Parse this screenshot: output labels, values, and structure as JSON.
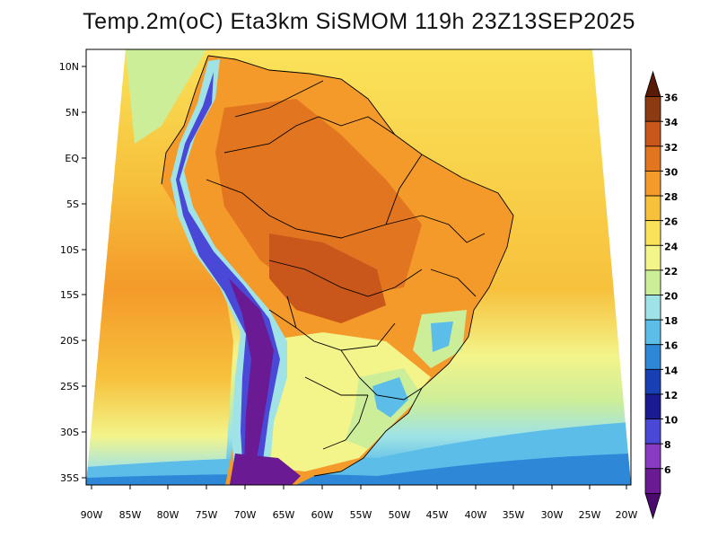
{
  "title": "Temp.2m(oC) Eta3km SiSMOM 119h 23Z13SEP2025",
  "map": {
    "variable": "2 m temperature",
    "units": "oC",
    "lat_labels": [
      "10N",
      "5N",
      "EQ",
      "5S",
      "10S",
      "15S",
      "20S",
      "25S",
      "30S",
      "35S"
    ],
    "lon_labels": [
      "90W",
      "85W",
      "80W",
      "75W",
      "70W",
      "65W",
      "60W",
      "55W",
      "50W",
      "45W",
      "40W",
      "35W",
      "30W",
      "25W",
      "20W"
    ]
  },
  "colorbar": {
    "labels": [
      "36",
      "34",
      "32",
      "30",
      "28",
      "26",
      "24",
      "22",
      "20",
      "18",
      "16",
      "14",
      "12",
      "10",
      "8",
      "6"
    ],
    "colors": [
      "#5a1a08",
      "#8b3a12",
      "#c9561a",
      "#e2751f",
      "#f49a2a",
      "#f7c13c",
      "#fae35a",
      "#f3f48a",
      "#cdee98",
      "#9fe3e6",
      "#5cbde8",
      "#2f87d8",
      "#1840b4",
      "#1a1a92",
      "#4a48d6",
      "#8a3bc4",
      "#6a1a92",
      "#4a0a6e"
    ]
  }
}
